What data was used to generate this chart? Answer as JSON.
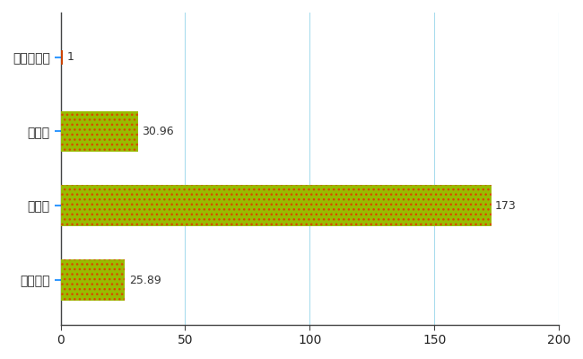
{
  "categories": [
    "ときがわ町",
    "県平均",
    "県最大",
    "全国平均"
  ],
  "values": [
    1,
    30.96,
    173,
    25.89
  ],
  "labels": [
    "1",
    "30.96",
    "173",
    "25.89"
  ],
  "bar_colors": [
    "#cc4400",
    "#99bb00",
    "#99bb00",
    "#99bb00"
  ],
  "bar_hatch_colors": [
    "#cc4400",
    "#ff4400",
    "#ff4400",
    "#ff4400"
  ],
  "background_color": "#ffffff",
  "grid_color": "#aaddee",
  "xlim": [
    0,
    200
  ],
  "xticks": [
    0,
    50,
    100,
    150,
    200
  ],
  "label_color": "#222222",
  "value_color": "#333333",
  "bar_height": 0.55,
  "figsize": [
    6.5,
    4.0
  ],
  "dpi": 100,
  "axis_line_color": "#444444",
  "tick_label_color": "#0055aa"
}
